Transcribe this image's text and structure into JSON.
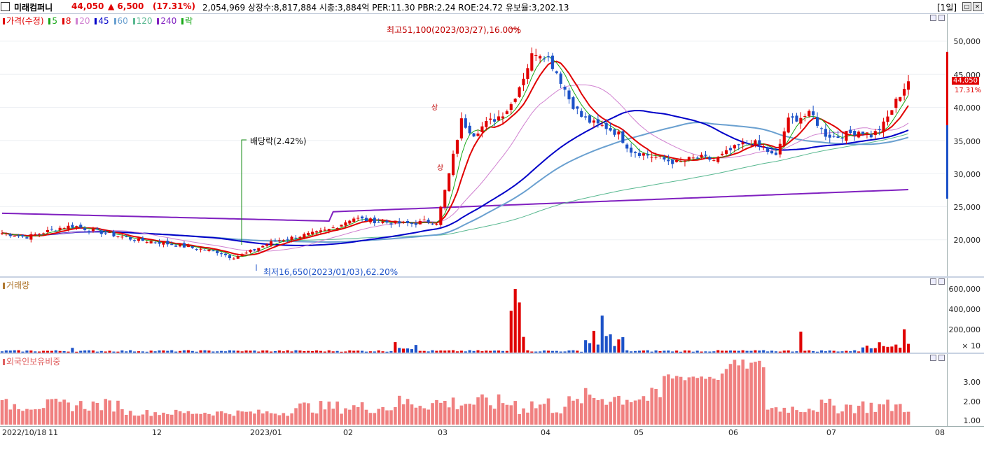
{
  "header": {
    "name": "미래컴퍼니",
    "price": "44,050",
    "change": "▲ 6,500",
    "rate": "(17.31%)",
    "stats": "2,054,969  상장수:8,817,884 시총:3,884억  PER:11.30 PBR:2.24 ROE:24.72 유보율:3,202.13",
    "period": "[1일]",
    "win_buttons": [
      "□",
      "✕"
    ]
  },
  "price_panel": {
    "legend": [
      {
        "label": "가격(수정)",
        "color": "#e00000"
      },
      {
        "label": "5",
        "color": "#18a818"
      },
      {
        "label": "8",
        "color": "#e00000"
      },
      {
        "label": "20",
        "color": "#d080d0"
      },
      {
        "label": "45",
        "color": "#0000c8"
      },
      {
        "label": "60",
        "color": "#6aa0d0"
      },
      {
        "label": "120",
        "color": "#58b890"
      },
      {
        "label": "240",
        "color": "#8020c0"
      },
      {
        "label": "락",
        "color": "#18a818"
      }
    ],
    "high_annotation": "최고51,100(2023/03/27),16.00%",
    "low_annotation": "최저16,650(2023/01/03),62.20%",
    "dividend_annotation": "배당락(2.42%)",
    "ticks": [
      "50,000",
      "45,000",
      "40,000",
      "35,000",
      "30,000",
      "25,000",
      "20,000"
    ],
    "current_price_tag": "44,050",
    "current_rate_tag": "17.31%",
    "limit_up_marks": [
      "상",
      "상"
    ]
  },
  "volume_panel": {
    "legend": "거래량",
    "ticks": [
      "600,000",
      "400,000",
      "200,000"
    ],
    "unit": "× 10"
  },
  "foreign_panel": {
    "legend": "외국인보유비중",
    "ticks": [
      "3.00",
      "2.00",
      "1.00"
    ]
  },
  "x_axis": {
    "labels": [
      "2022/10/18",
      "11",
      "12",
      "2023/01",
      "02",
      "03",
      "04",
      "05",
      "06",
      "07",
      "08"
    ]
  },
  "colors": {
    "up": "#e00000",
    "down": "#1c52c8",
    "foreign_bar": "#f08080",
    "panel_border": "#c8d2e2"
  },
  "chart_data": [
    {
      "type": "candlestick",
      "title": "",
      "ylim": [
        15000,
        52000
      ],
      "approx_close": [
        21000,
        20700,
        20400,
        20900,
        21400,
        21900,
        22100,
        21600,
        21200,
        20800,
        20400,
        20000,
        19800,
        19600,
        19300,
        19000,
        18700,
        18400,
        18100,
        17300,
        17800,
        18600,
        19400,
        20000,
        20300,
        20700,
        21000,
        21500,
        22300,
        23300,
        23000,
        22800,
        22600,
        22500,
        22400,
        22800,
        22600,
        30000,
        38000,
        36000,
        37500,
        38500,
        40000,
        44000,
        48500,
        48000,
        45000,
        41000,
        38500,
        37500,
        37000,
        36000,
        33500,
        33000,
        32500,
        32000,
        31600,
        32200,
        32400,
        32000,
        33200,
        34200,
        34800,
        34000,
        32300,
        38000,
        38500,
        39000,
        36000,
        35500,
        36000,
        36500,
        35700,
        37500,
        41000,
        44050
      ]
    }
  ]
}
